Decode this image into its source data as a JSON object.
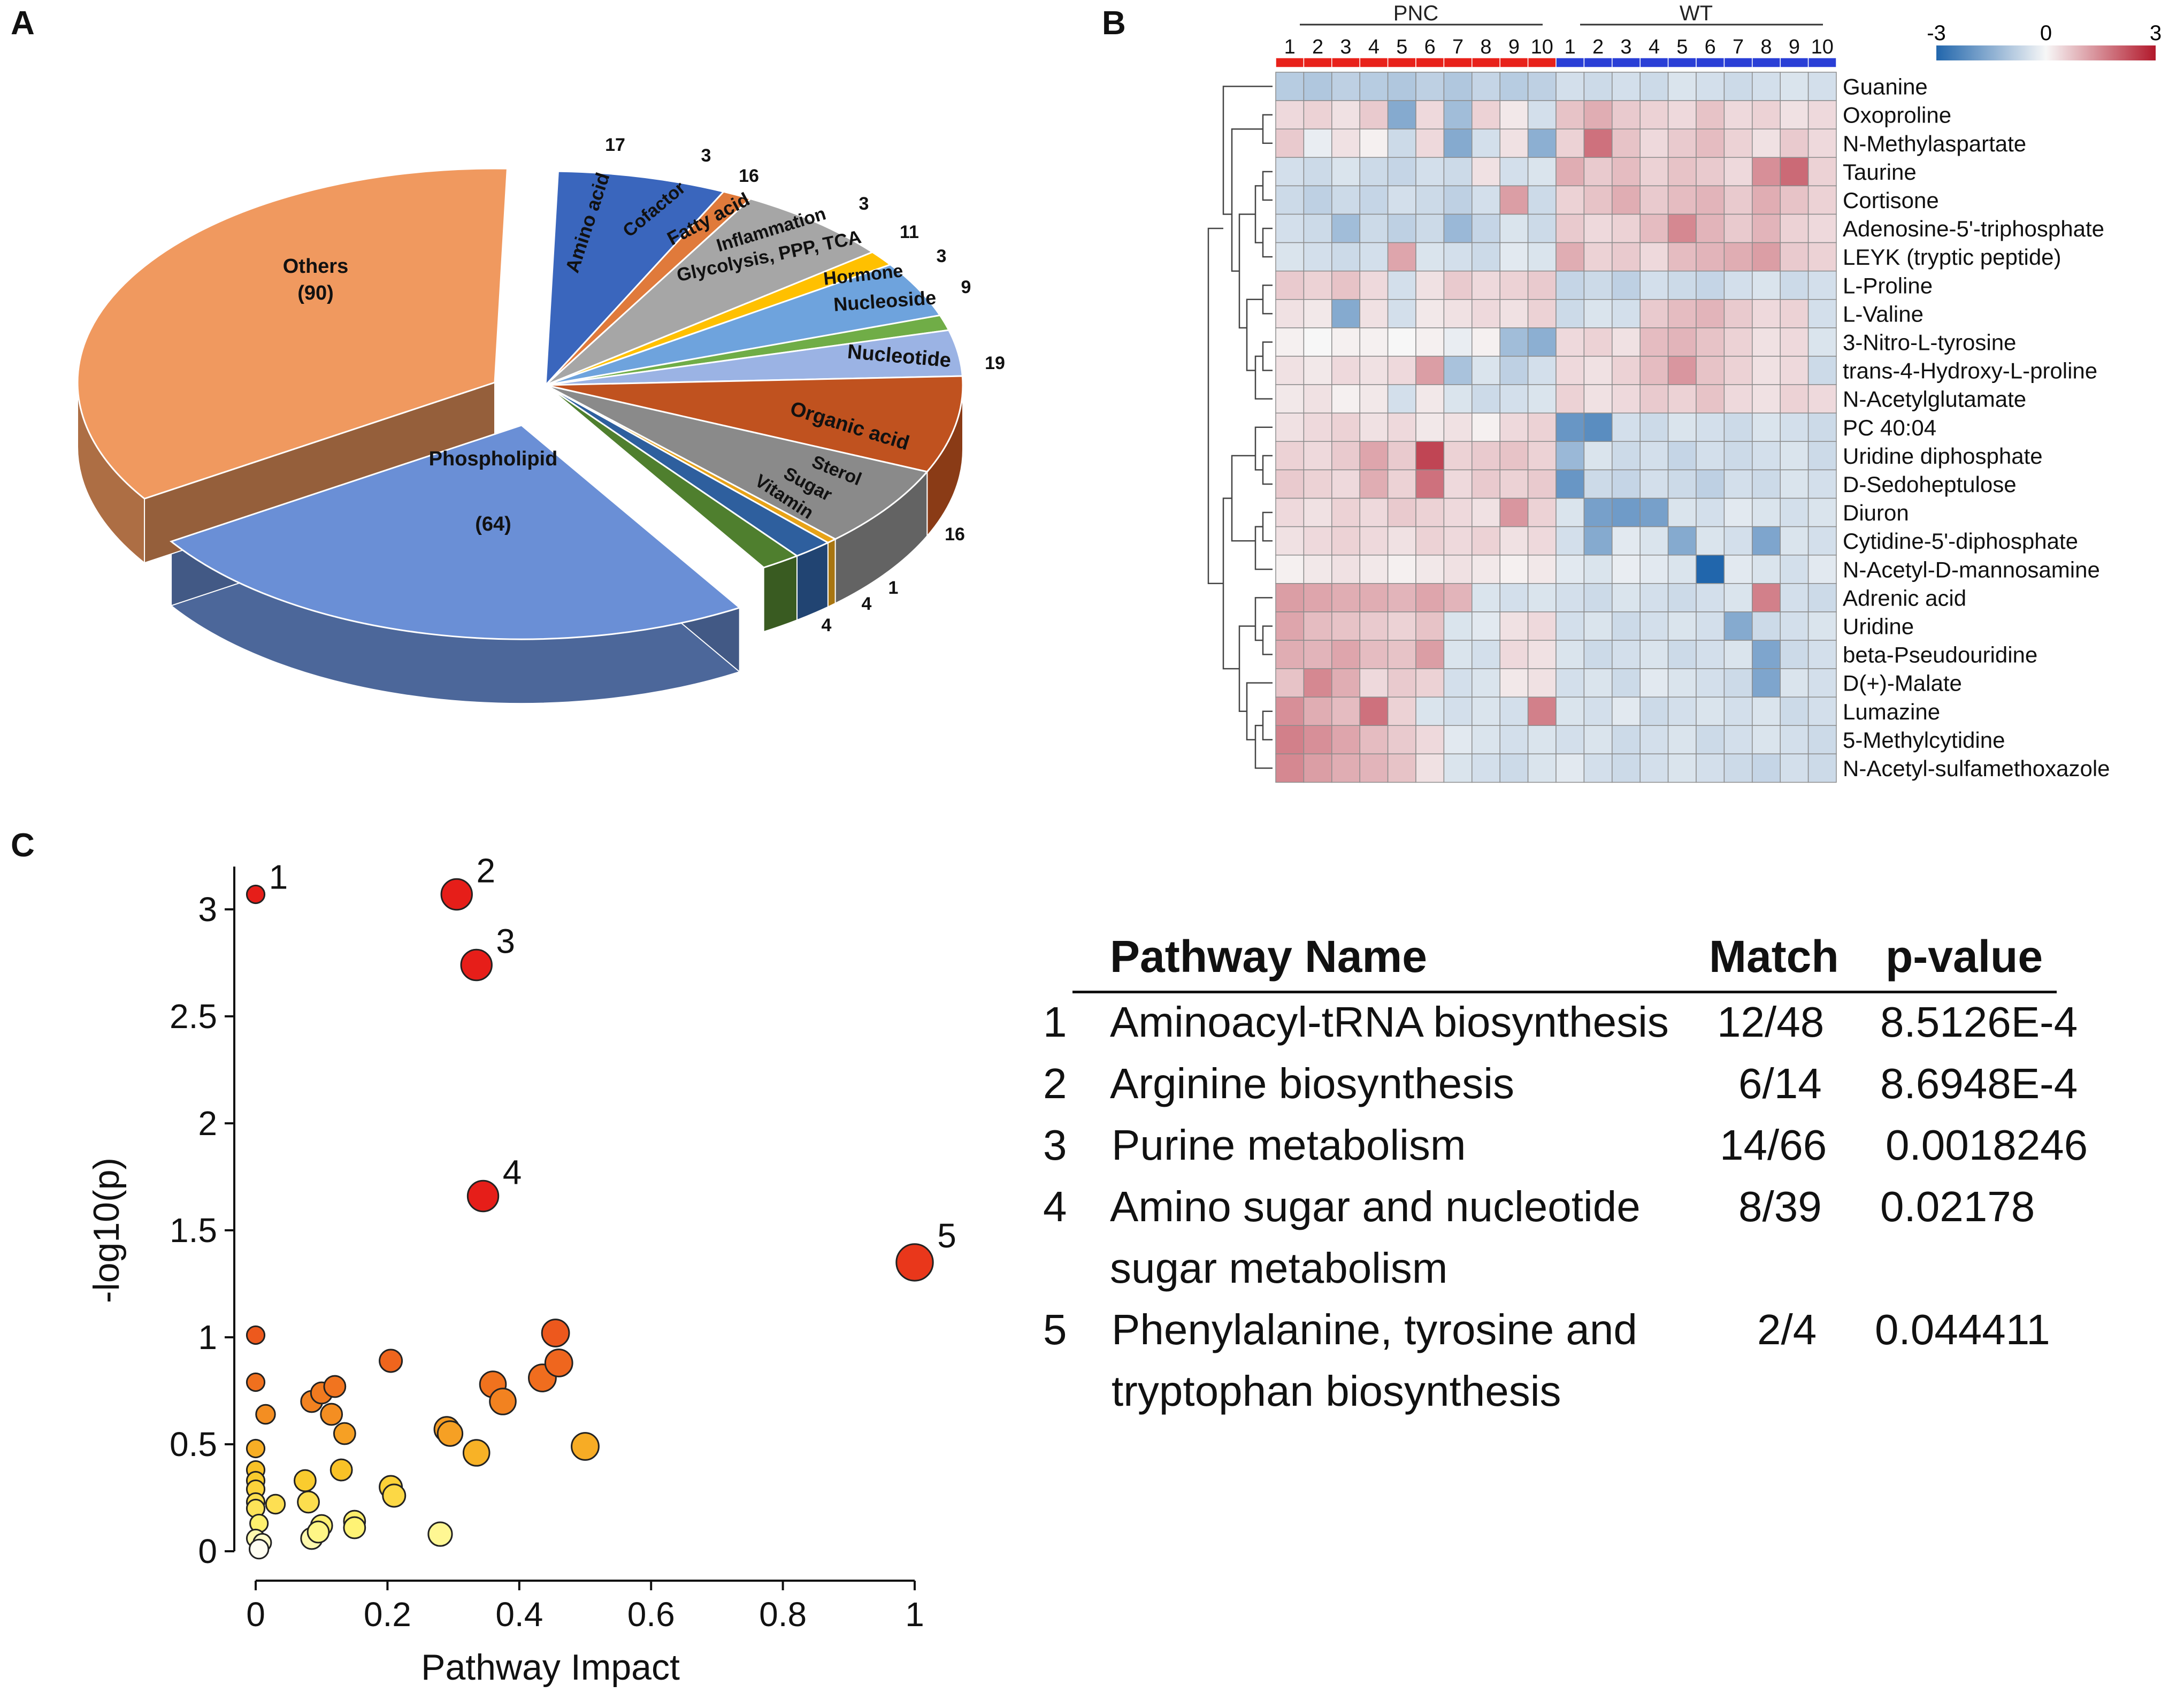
{
  "panels": {
    "a": "A",
    "b": "B",
    "c": "C"
  },
  "chart_data": [
    {
      "type": "pie",
      "panel": "A",
      "style": "3D exploded",
      "slices": [
        {
          "label": "Amino acid",
          "value": 17,
          "value_label": "17",
          "color": "#3a66bd"
        },
        {
          "label": "Cofactor",
          "value": 3,
          "value_label": "3",
          "color": "#e07a3b"
        },
        {
          "label": "Fatty acid",
          "value": 16,
          "value_label": "16",
          "color": "#a6a6a6"
        },
        {
          "label": "Inflammation",
          "value": 3,
          "value_label": "3",
          "color": "#ffc000"
        },
        {
          "label": "Glycolysis, PPP, TCA",
          "value": 11,
          "value_label": "11",
          "color": "#6ea3dd"
        },
        {
          "label": "Hormone",
          "value": 3,
          "value_label": "3",
          "color": "#70ad47"
        },
        {
          "label": "Nucleoside",
          "value": 9,
          "value_label": "9",
          "color": "#9bb3e4"
        },
        {
          "label": "Nucleotide",
          "value": 19,
          "value_label": "19",
          "color": "#c0521f"
        },
        {
          "label": "Organic acid",
          "value": 16,
          "value_label": "16",
          "color": "#8a8a8a"
        },
        {
          "label": "Sterol",
          "value": 1,
          "value_label": "1",
          "color": "#e8a317"
        },
        {
          "label": "Sugar",
          "value": 4,
          "value_label": "4",
          "color": "#2e5f9e"
        },
        {
          "label": "Vitamin",
          "value": 4,
          "value_label": "4",
          "color": "#4f7f2e"
        },
        {
          "label": "Phospholipid",
          "value": 64,
          "value_label": "(64)",
          "color": "#6a8fd6"
        },
        {
          "label": "Others",
          "value": 90,
          "value_label": "(90)",
          "color": "#f0995f"
        }
      ]
    },
    {
      "type": "heatmap",
      "panel": "B",
      "groups": [
        {
          "name": "PNC",
          "color": "#e8221b",
          "samples": [
            "1",
            "2",
            "3",
            "4",
            "5",
            "6",
            "7",
            "8",
            "9",
            "10"
          ]
        },
        {
          "name": "WT",
          "color": "#2a3fd6",
          "samples": [
            "1",
            "2",
            "3",
            "4",
            "5",
            "6",
            "7",
            "8",
            "9",
            "10"
          ]
        }
      ],
      "colorbar": {
        "min_label": "-3",
        "mid_label": "0",
        "max_label": "3",
        "min": -3,
        "max": 3,
        "low_color": "#2166ac",
        "mid_color": "#f7f7f7",
        "high_color": "#b2182b"
      },
      "rows": [
        "Guanine",
        "Oxoproline",
        "N-Methylaspartate",
        "Taurine",
        "Cortisone",
        "Adenosine-5'-triphosphate",
        "LEYK (tryptic peptide)",
        "L-Proline",
        "L-Valine",
        "3-Nitro-L-tyrosine",
        "trans-4-Hydroxy-L-proline",
        "N-Acetylglutamate",
        "PC 40:04",
        "Uridine diphosphate",
        "D-Sedoheptulose",
        "Diuron",
        "Cytidine-5'-diphosphate",
        "N-Acetyl-D-mannosamine",
        "Adrenic acid",
        "Uridine",
        "beta-Pseudouridine",
        "D(+)-Malate",
        "Lumazine",
        "5-Methylcytidine",
        "N-Acetyl-sulfamethoxazole"
      ],
      "values": [
        [
          -0.9,
          -1.0,
          -0.8,
          -0.9,
          -1.0,
          -0.8,
          -1.0,
          -0.7,
          -0.9,
          -0.8,
          -0.5,
          -0.6,
          -0.5,
          -0.6,
          -0.4,
          -0.5,
          -0.6,
          -0.5,
          -0.4,
          -0.5
        ],
        [
          0.4,
          0.5,
          0.3,
          0.6,
          -1.6,
          0.4,
          -1.2,
          0.5,
          0.2,
          -0.5,
          0.7,
          1.0,
          0.6,
          0.5,
          0.4,
          0.7,
          0.4,
          0.5,
          0.3,
          0.4
        ],
        [
          0.6,
          -0.2,
          0.3,
          0.1,
          -0.6,
          0.4,
          -1.6,
          -0.5,
          0.3,
          -1.5,
          0.5,
          1.8,
          0.7,
          0.4,
          0.6,
          0.8,
          0.5,
          0.3,
          0.6,
          0.4
        ],
        [
          -0.5,
          -0.6,
          -0.4,
          -0.6,
          -0.7,
          -0.5,
          -0.6,
          0.3,
          -0.5,
          -0.4,
          1.0,
          0.6,
          0.8,
          0.5,
          0.7,
          0.6,
          0.4,
          1.4,
          1.9,
          0.5
        ],
        [
          -0.6,
          -0.8,
          -0.6,
          -0.7,
          -0.5,
          -0.6,
          -0.8,
          -0.5,
          1.2,
          -0.6,
          0.5,
          0.7,
          1.0,
          0.6,
          0.8,
          0.9,
          0.6,
          1.0,
          0.7,
          0.5
        ],
        [
          -0.5,
          -0.6,
          -1.2,
          -0.6,
          -0.8,
          -0.6,
          -1.3,
          -0.7,
          -0.4,
          -0.6,
          0.6,
          0.4,
          0.5,
          0.8,
          1.5,
          0.9,
          0.6,
          0.9,
          0.5,
          0.4
        ],
        [
          -0.4,
          -0.5,
          -0.6,
          -0.5,
          1.1,
          -0.4,
          -0.5,
          -0.6,
          -0.3,
          -0.4,
          1.0,
          0.5,
          0.6,
          0.4,
          0.8,
          0.9,
          1.0,
          1.2,
          0.6,
          0.5
        ],
        [
          0.6,
          0.5,
          0.7,
          0.4,
          -0.5,
          0.3,
          0.6,
          0.4,
          0.5,
          0.6,
          -0.7,
          -0.6,
          -0.8,
          -0.5,
          -0.6,
          -0.7,
          -0.5,
          -0.4,
          -0.6,
          -0.5
        ],
        [
          0.3,
          0.2,
          -1.6,
          0.3,
          -0.5,
          0.2,
          0.3,
          0.4,
          0.3,
          0.5,
          -0.6,
          -0.4,
          -0.5,
          0.6,
          0.8,
          0.9,
          0.6,
          0.4,
          0.5,
          -0.5
        ],
        [
          0.1,
          0.0,
          0.1,
          0.1,
          0.0,
          0.1,
          -0.2,
          0.1,
          -1.2,
          -1.5,
          0.4,
          0.5,
          0.3,
          0.8,
          0.9,
          0.7,
          0.5,
          0.3,
          0.4,
          -0.4
        ],
        [
          0.3,
          0.2,
          0.4,
          0.3,
          0.4,
          1.2,
          -1.1,
          -0.4,
          -0.8,
          -0.5,
          0.4,
          0.3,
          0.5,
          0.8,
          1.3,
          0.7,
          0.5,
          0.3,
          0.4,
          -0.6
        ],
        [
          0.2,
          0.3,
          0.1,
          0.2,
          -0.5,
          0.2,
          -0.4,
          -0.6,
          -0.5,
          -0.4,
          0.5,
          0.3,
          0.4,
          0.6,
          0.5,
          0.7,
          0.4,
          0.3,
          0.5,
          0.4
        ],
        [
          0.3,
          0.4,
          0.5,
          0.3,
          0.4,
          0.2,
          0.3,
          0.1,
          0.4,
          0.5,
          -2.0,
          -2.2,
          -0.5,
          -0.6,
          -0.4,
          -0.5,
          -0.6,
          -0.4,
          -0.5,
          -0.6
        ],
        [
          0.5,
          0.4,
          0.6,
          1.1,
          0.6,
          2.4,
          0.5,
          0.6,
          0.7,
          0.5,
          -1.3,
          -0.4,
          -0.6,
          -0.5,
          -0.7,
          -0.5,
          -0.6,
          -0.5,
          -0.4,
          -0.6
        ],
        [
          0.6,
          0.5,
          0.4,
          1.0,
          0.5,
          1.8,
          0.4,
          0.6,
          0.5,
          0.6,
          -2.0,
          -0.6,
          -0.7,
          -0.5,
          -0.6,
          -0.8,
          -0.5,
          -0.6,
          -0.4,
          -0.5
        ],
        [
          0.4,
          0.3,
          0.5,
          0.4,
          0.6,
          0.5,
          0.4,
          0.3,
          1.3,
          0.5,
          -0.4,
          -1.8,
          -1.9,
          -1.8,
          -0.4,
          -0.5,
          -0.3,
          -0.4,
          -0.5,
          -0.4
        ],
        [
          0.3,
          0.4,
          0.5,
          0.4,
          0.3,
          0.5,
          0.4,
          0.5,
          0.3,
          0.4,
          -0.5,
          -1.6,
          -0.3,
          -0.4,
          -1.6,
          -0.4,
          -0.5,
          -1.7,
          -0.4,
          -0.5
        ],
        [
          0.1,
          0.2,
          0.3,
          0.2,
          0.1,
          0.2,
          0.3,
          0.2,
          0.1,
          0.2,
          -0.3,
          -0.4,
          -0.2,
          -0.3,
          -0.4,
          -3.0,
          -0.3,
          -0.4,
          -0.5,
          -0.3
        ],
        [
          1.2,
          1.1,
          1.0,
          1.0,
          0.9,
          1.1,
          0.9,
          -0.4,
          -0.5,
          -0.4,
          -0.5,
          -0.6,
          -0.4,
          -0.5,
          -0.6,
          -0.5,
          -0.4,
          1.6,
          -0.5,
          -0.6
        ],
        [
          1.1,
          0.8,
          0.7,
          0.6,
          0.5,
          0.7,
          -0.4,
          -0.3,
          0.3,
          0.4,
          -0.5,
          -0.4,
          -0.6,
          -0.5,
          -0.4,
          -0.5,
          -1.6,
          -0.6,
          -0.5,
          -0.4
        ],
        [
          1.0,
          0.9,
          1.1,
          0.8,
          0.7,
          1.2,
          -0.4,
          -0.5,
          0.4,
          0.3,
          -0.4,
          -0.6,
          -0.5,
          -0.4,
          -0.6,
          -0.5,
          -0.4,
          -1.7,
          -0.6,
          -0.5
        ],
        [
          0.7,
          1.5,
          1.0,
          0.4,
          0.6,
          0.5,
          -0.5,
          -0.4,
          0.2,
          0.3,
          -0.5,
          -0.4,
          -0.6,
          -0.3,
          -0.4,
          -0.5,
          -0.6,
          -1.7,
          -0.4,
          -0.5
        ],
        [
          1.4,
          1.0,
          0.8,
          1.8,
          0.5,
          -0.4,
          -0.5,
          -0.4,
          -0.5,
          1.6,
          -0.4,
          -0.5,
          -0.3,
          -0.6,
          -0.5,
          -0.4,
          -0.5,
          -0.4,
          -0.6,
          -0.5
        ],
        [
          1.6,
          1.4,
          1.1,
          0.8,
          0.6,
          0.4,
          -0.3,
          -0.4,
          -0.5,
          -0.4,
          -0.5,
          -0.4,
          -0.6,
          -0.5,
          -0.4,
          -0.6,
          -0.5,
          -0.4,
          -0.5,
          -0.6
        ],
        [
          1.5,
          1.2,
          1.0,
          0.9,
          0.7,
          0.3,
          -0.4,
          -0.5,
          -0.6,
          -0.4,
          -0.3,
          -0.5,
          -0.6,
          -0.5,
          -0.4,
          -0.5,
          -0.6,
          -0.7,
          -0.5,
          -0.6
        ]
      ]
    },
    {
      "type": "scatter",
      "panel": "C",
      "xlabel": "Pathway Impact",
      "ylabel": "-log10(p)",
      "xlim": [
        0,
        1
      ],
      "ylim": [
        0,
        3.2
      ],
      "xticks": [
        {
          "v": 0,
          "label": "0"
        },
        {
          "v": 0.2,
          "label": "0.2"
        },
        {
          "v": 0.4,
          "label": "0.4"
        },
        {
          "v": 0.6,
          "label": "0.6"
        },
        {
          "v": 0.8,
          "label": "0.8"
        },
        {
          "v": 1,
          "label": "1"
        }
      ],
      "yticks": [
        {
          "v": 0,
          "label": "0"
        },
        {
          "v": 0.5,
          "label": "0.5"
        },
        {
          "v": 1,
          "label": "1"
        },
        {
          "v": 1.5,
          "label": "1.5"
        },
        {
          "v": 2,
          "label": "2"
        },
        {
          "v": 2.5,
          "label": "2.5"
        },
        {
          "v": 3,
          "label": "3"
        }
      ],
      "points": [
        {
          "x": 0.0,
          "y": 3.07,
          "size": 0.3,
          "label": "1"
        },
        {
          "x": 0.305,
          "y": 3.07,
          "size": 0.85,
          "label": "2"
        },
        {
          "x": 0.335,
          "y": 2.74,
          "size": 0.85,
          "label": "3"
        },
        {
          "x": 0.345,
          "y": 1.66,
          "size": 0.85,
          "label": "4"
        },
        {
          "x": 1.0,
          "y": 1.35,
          "size": 1.1,
          "label": "5"
        },
        {
          "x": 0.0,
          "y": 1.01,
          "size": 0.3
        },
        {
          "x": 0.0,
          "y": 0.79,
          "size": 0.3
        },
        {
          "x": 0.015,
          "y": 0.64,
          "size": 0.35
        },
        {
          "x": 0.0,
          "y": 0.48,
          "size": 0.3
        },
        {
          "x": 0.0,
          "y": 0.38,
          "size": 0.3
        },
        {
          "x": 0.0,
          "y": 0.33,
          "size": 0.3
        },
        {
          "x": 0.0,
          "y": 0.29,
          "size": 0.3
        },
        {
          "x": 0.0,
          "y": 0.23,
          "size": 0.3
        },
        {
          "x": 0.0,
          "y": 0.2,
          "size": 0.3
        },
        {
          "x": 0.005,
          "y": 0.13,
          "size": 0.3
        },
        {
          "x": 0.0,
          "y": 0.06,
          "size": 0.3
        },
        {
          "x": 0.01,
          "y": 0.04,
          "size": 0.3
        },
        {
          "x": 0.005,
          "y": 0.01,
          "size": 0.35
        },
        {
          "x": 0.03,
          "y": 0.22,
          "size": 0.35
        },
        {
          "x": 0.085,
          "y": 0.7,
          "size": 0.45
        },
        {
          "x": 0.1,
          "y": 0.74,
          "size": 0.45
        },
        {
          "x": 0.12,
          "y": 0.77,
          "size": 0.45
        },
        {
          "x": 0.115,
          "y": 0.64,
          "size": 0.45
        },
        {
          "x": 0.135,
          "y": 0.55,
          "size": 0.45
        },
        {
          "x": 0.075,
          "y": 0.33,
          "size": 0.45
        },
        {
          "x": 0.08,
          "y": 0.23,
          "size": 0.45
        },
        {
          "x": 0.13,
          "y": 0.38,
          "size": 0.45
        },
        {
          "x": 0.085,
          "y": 0.06,
          "size": 0.45
        },
        {
          "x": 0.1,
          "y": 0.12,
          "size": 0.45
        },
        {
          "x": 0.095,
          "y": 0.09,
          "size": 0.45
        },
        {
          "x": 0.15,
          "y": 0.14,
          "size": 0.45
        },
        {
          "x": 0.15,
          "y": 0.11,
          "size": 0.45
        },
        {
          "x": 0.205,
          "y": 0.3,
          "size": 0.5
        },
        {
          "x": 0.21,
          "y": 0.26,
          "size": 0.5
        },
        {
          "x": 0.205,
          "y": 0.89,
          "size": 0.5
        },
        {
          "x": 0.29,
          "y": 0.57,
          "size": 0.6
        },
        {
          "x": 0.295,
          "y": 0.55,
          "size": 0.6
        },
        {
          "x": 0.28,
          "y": 0.08,
          "size": 0.55
        },
        {
          "x": 0.335,
          "y": 0.46,
          "size": 0.65
        },
        {
          "x": 0.36,
          "y": 0.78,
          "size": 0.65
        },
        {
          "x": 0.375,
          "y": 0.7,
          "size": 0.65
        },
        {
          "x": 0.435,
          "y": 0.81,
          "size": 0.7
        },
        {
          "x": 0.455,
          "y": 1.02,
          "size": 0.7
        },
        {
          "x": 0.46,
          "y": 0.88,
          "size": 0.7
        },
        {
          "x": 0.5,
          "y": 0.49,
          "size": 0.7
        }
      ]
    }
  ],
  "pathway_table": {
    "headers": {
      "name": "Pathway Name",
      "match": "Match",
      "pvalue": "p-value"
    },
    "rows": [
      {
        "idx": "1",
        "name": "Aminoacyl-tRNA biosynthesis",
        "name2": "",
        "match": "12/48",
        "pvalue": "8.5126E-4"
      },
      {
        "idx": "2",
        "name": "Arginine biosynthesis",
        "name2": "",
        "match": "6/14",
        "pvalue": "8.6948E-4"
      },
      {
        "idx": "3",
        "name": "Purine metabolism",
        "name2": "",
        "match": "14/66",
        "pvalue": "0.0018246"
      },
      {
        "idx": "4",
        "name": "Amino sugar and nucleotide",
        "name2": "sugar metabolism",
        "match": "8/39",
        "pvalue": "0.02178"
      },
      {
        "idx": "5",
        "name": "Phenylalanine, tyrosine and",
        "name2": "tryptophan biosynthesis",
        "match": "2/4",
        "pvalue": "0.044411"
      }
    ]
  }
}
